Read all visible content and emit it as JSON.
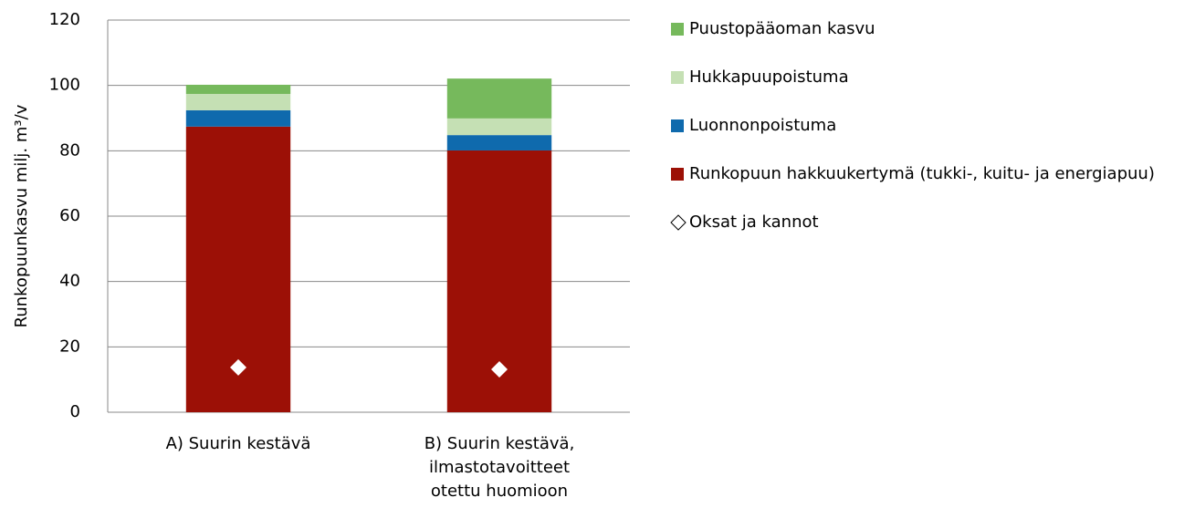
{
  "chart_data": {
    "type": "stacked_bar",
    "ylabel": "Runkopuunkasvu milj. m³/v",
    "categories": [
      "A) Suurin kestävä",
      "B) Suurin kestävä,\nilmastotavoitteet\notettu huomioon"
    ],
    "series": [
      {
        "name": "Runkopuun hakkuukertymä (tukki-, kuitu- ja energiapuu)",
        "color": "#9c1006",
        "values": [
          87.4,
          80.1
        ]
      },
      {
        "name": "Luonnonpoistuma",
        "color": "#0f6aad",
        "values": [
          5.0,
          4.7
        ]
      },
      {
        "name": "Hukkapuupoistuma",
        "color": "#c5e0b4",
        "values": [
          5.0,
          5.1
        ]
      },
      {
        "name": "Puustopääoman kasvu",
        "color": "#76b95c",
        "values": [
          2.8,
          12.2
        ]
      },
      {
        "name": "Oksat ja kannot",
        "type": "marker",
        "marker": "diamond",
        "color": "#ffffff",
        "values": [
          13.7,
          13.1
        ]
      }
    ],
    "ylim": [
      0,
      120
    ],
    "yticks": [
      0,
      20,
      40,
      60,
      80,
      100,
      120
    ],
    "grid": true,
    "legend": "right"
  }
}
